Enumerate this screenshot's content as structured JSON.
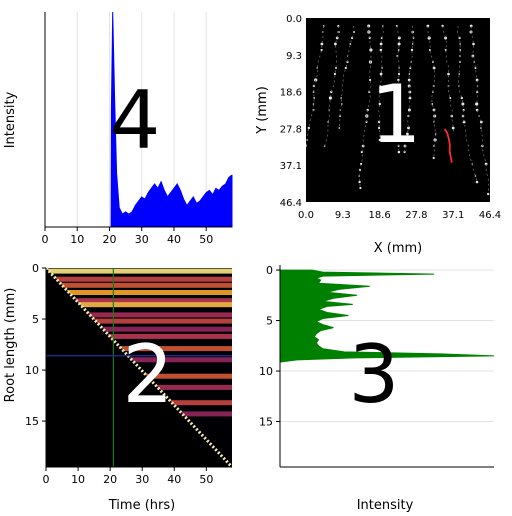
{
  "chart_data": [
    {
      "panel": "4",
      "type": "area",
      "title": "",
      "ylabel": "Intensity",
      "xlabel": "",
      "xlim": [
        0,
        58
      ],
      "x_ticks": [
        0,
        10,
        20,
        30,
        40,
        50
      ],
      "grid": "vertical",
      "color": "#0000ff",
      "series": [
        {
          "x": [
            0,
            20.5,
            20.6,
            21.0,
            21.6,
            22.2,
            23.0,
            24.0,
            25.0,
            26.0,
            27.0,
            28.0,
            29.0,
            30.0,
            31.0,
            32.0,
            33.0,
            34.0,
            35.0,
            36.0,
            37.0,
            38.0,
            39.0,
            40.0,
            41.0,
            42.0,
            43.0,
            44.0,
            45.0,
            46.0,
            47.0,
            48.0,
            49.0,
            50.0,
            51.0,
            52.0,
            53.0,
            54.0,
            55.0,
            56.0,
            57.0,
            57.8,
            58.0
          ],
          "y": [
            0,
            0,
            0.55,
            1.0,
            0.6,
            0.25,
            0.09,
            0.06,
            0.07,
            0.06,
            0.07,
            0.1,
            0.12,
            0.14,
            0.13,
            0.16,
            0.18,
            0.2,
            0.18,
            0.21,
            0.17,
            0.14,
            0.16,
            0.18,
            0.2,
            0.17,
            0.13,
            0.1,
            0.12,
            0.14,
            0.11,
            0.12,
            0.14,
            0.16,
            0.17,
            0.15,
            0.18,
            0.17,
            0.19,
            0.2,
            0.23,
            0.24,
            0.24
          ]
        }
      ]
    },
    {
      "panel": "1",
      "type": "image",
      "xlabel": "X (mm)",
      "ylabel": "Y (mm)",
      "x_ticks": [
        "0.0",
        "9.3",
        "18.6",
        "27.8",
        "37.1",
        "46.4"
      ],
      "y_ticks": [
        "0.0",
        "9.3",
        "18.6",
        "27.8",
        "37.1",
        "46.4"
      ],
      "xlim": [
        0,
        46.4
      ],
      "ylim": [
        0,
        46.4
      ],
      "highlight_color": "#ff2a2a",
      "highlight_trace": {
        "x": [
          35.0,
          35.6,
          36.0,
          36.3,
          36.2,
          36.5,
          36.8
        ],
        "y": [
          28.0,
          29.0,
          30.5,
          32.0,
          33.5,
          35.0,
          36.5
        ]
      }
    },
    {
      "panel": "2",
      "type": "heatmap",
      "xlabel": "Time (hrs)",
      "ylabel": "Root length (mm)",
      "x_ticks": [
        0,
        10,
        20,
        30,
        40,
        50
      ],
      "y_ticks": [
        0,
        5,
        10,
        15
      ],
      "xlim": [
        0,
        58
      ],
      "ylim": [
        0,
        19.5
      ],
      "colormap": "inferno",
      "crosshair": {
        "time": 21,
        "root_length": 8.6
      },
      "crosshair_colors": {
        "vertical": "#1a7a1a",
        "horizontal": "#1f2fa8"
      },
      "diagonal_color": "#f2ecb0",
      "bands": [
        {
          "root_length": 0.3,
          "value": 0.95
        },
        {
          "root_length": 1.1,
          "value": 0.55
        },
        {
          "root_length": 1.7,
          "value": 0.6
        },
        {
          "root_length": 2.4,
          "value": 0.8
        },
        {
          "root_length": 3.2,
          "value": 0.5
        },
        {
          "root_length": 3.6,
          "value": 0.85
        },
        {
          "root_length": 4.6,
          "value": 0.45
        },
        {
          "root_length": 5.2,
          "value": 0.55
        },
        {
          "root_length": 6.0,
          "value": 0.4
        },
        {
          "root_length": 6.7,
          "value": 0.5
        },
        {
          "root_length": 7.9,
          "value": 0.6
        },
        {
          "root_length": 9.0,
          "value": 0.4
        },
        {
          "root_length": 10.6,
          "value": 0.6
        },
        {
          "root_length": 11.7,
          "value": 0.45
        },
        {
          "root_length": 13.2,
          "value": 0.55
        },
        {
          "root_length": 14.3,
          "value": 0.4
        }
      ]
    },
    {
      "panel": "3",
      "type": "area",
      "orientation": "horizontal",
      "xlabel": "Intensity",
      "ylabel": "",
      "y_ticks": [
        0,
        5,
        10,
        15
      ],
      "ylim": [
        -0.5,
        19.5
      ],
      "grid": "horizontal",
      "color": "#008000",
      "series": [
        {
          "root_length": [
            0,
            0.2,
            0.4,
            0.6,
            0.8,
            1.0,
            1.3,
            1.6,
            1.9,
            2.2,
            2.5,
            2.8,
            3.1,
            3.4,
            3.6,
            3.9,
            4.2,
            4.5,
            4.8,
            5.1,
            5.4,
            5.7,
            6.0,
            6.3,
            6.6,
            6.9,
            7.2,
            7.5,
            7.8,
            8.1,
            8.3,
            8.5,
            8.7,
            8.9,
            9.1
          ],
          "intensity": [
            0.15,
            0.2,
            0.72,
            0.2,
            0.17,
            0.19,
            0.18,
            0.42,
            0.28,
            0.22,
            0.36,
            0.25,
            0.2,
            0.34,
            0.22,
            0.18,
            0.22,
            0.32,
            0.2,
            0.17,
            0.2,
            0.25,
            0.19,
            0.17,
            0.16,
            0.18,
            0.17,
            0.18,
            0.2,
            0.3,
            0.75,
            1.0,
            0.35,
            0.08,
            0.0
          ]
        }
      ]
    }
  ],
  "panel_labels": [
    "4",
    "1",
    "2",
    "3"
  ]
}
